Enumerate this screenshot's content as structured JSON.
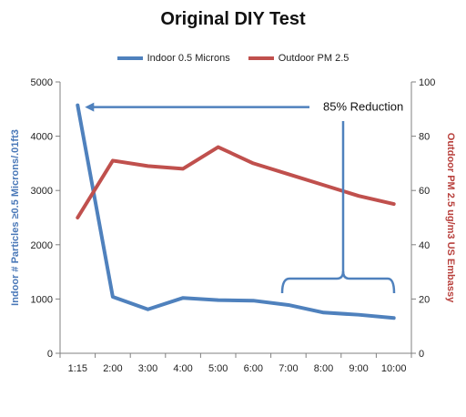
{
  "chart_data": {
    "type": "line",
    "title": "Original DIY Test",
    "categories": [
      "1:15",
      "2:00",
      "3:00",
      "4:00",
      "5:00",
      "6:00",
      "7:00",
      "8:00",
      "9:00",
      "10:00"
    ],
    "series": [
      {
        "name": "Indoor 0.5 Microns",
        "axis": "left",
        "color": "#4f81bd",
        "values": [
          4570,
          1040,
          810,
          1020,
          980,
          970,
          890,
          750,
          710,
          650
        ]
      },
      {
        "name": "Outdoor PM 2.5",
        "axis": "right",
        "color": "#c0504d",
        "values": [
          50,
          71,
          69,
          68,
          76,
          70,
          66,
          62,
          58,
          55
        ]
      }
    ],
    "y_left": {
      "label": "Indoor # Particles ≥0.5 Microns/.01ft3",
      "min": 0,
      "max": 5000,
      "ticks": [
        0,
        1000,
        2000,
        3000,
        4000,
        5000
      ]
    },
    "y_right": {
      "label": "Outdoor PM 2.5 ug/m3 US Embassy",
      "min": 0,
      "max": 100,
      "ticks": [
        0,
        20,
        40,
        60,
        80,
        100
      ]
    },
    "grid": false,
    "legend_position": "top-center",
    "annotation": "85% Reduction"
  }
}
